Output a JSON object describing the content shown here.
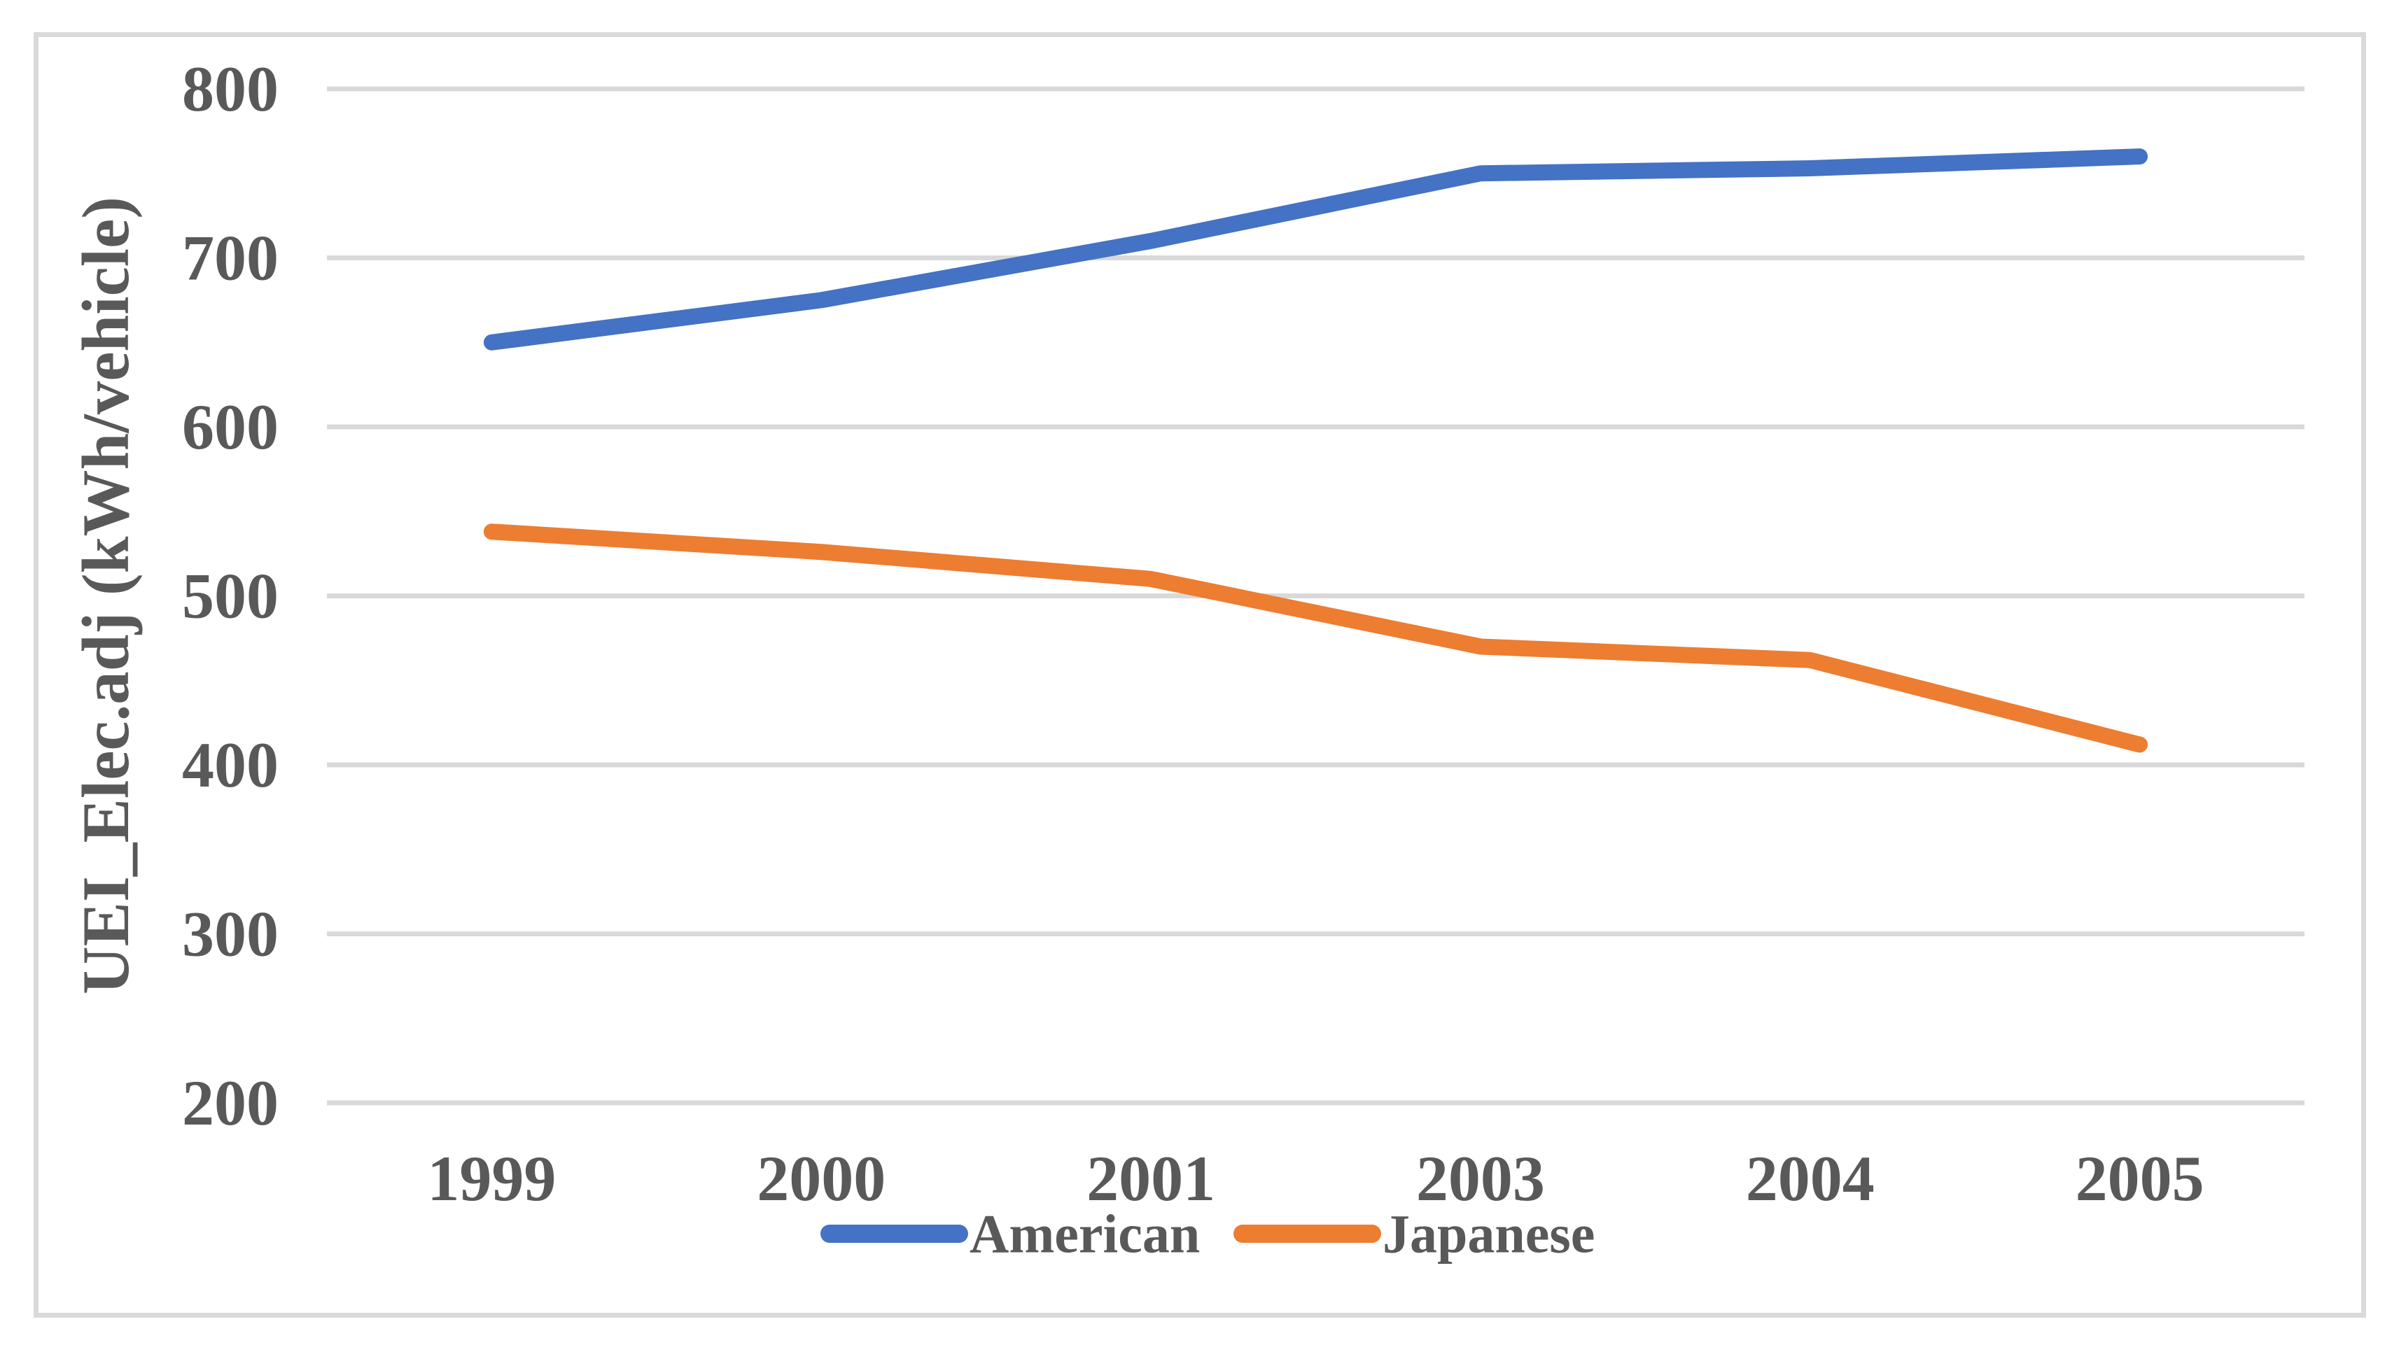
{
  "figure": {
    "background": "#ffffff",
    "border_color": "#d9d9d9"
  },
  "chart_data": {
    "type": "line",
    "title": "",
    "xlabel": "",
    "ylabel": "UEI_Elec.adj (kWh/vehicle)",
    "categories": [
      "1999",
      "2000",
      "2001",
      "2003",
      "2004",
      "2005"
    ],
    "series": [
      {
        "name": "American",
        "color": "#4472C4",
        "values": [
          650,
          675,
          710,
          750,
          753,
          760
        ]
      },
      {
        "name": "Japanese",
        "color": "#ED7D31",
        "values": [
          538,
          526,
          510,
          470,
          462,
          412
        ]
      }
    ],
    "ylim": [
      200,
      800
    ],
    "yticks": [
      800,
      700,
      600,
      500,
      400,
      300,
      200
    ],
    "ytick_interval": 100,
    "grid": "horizontal",
    "gridline_color": "#d9d9d9",
    "text_color": "#595959",
    "legend_position": "bottom",
    "legend_entries": [
      "American",
      "Japanese"
    ]
  }
}
